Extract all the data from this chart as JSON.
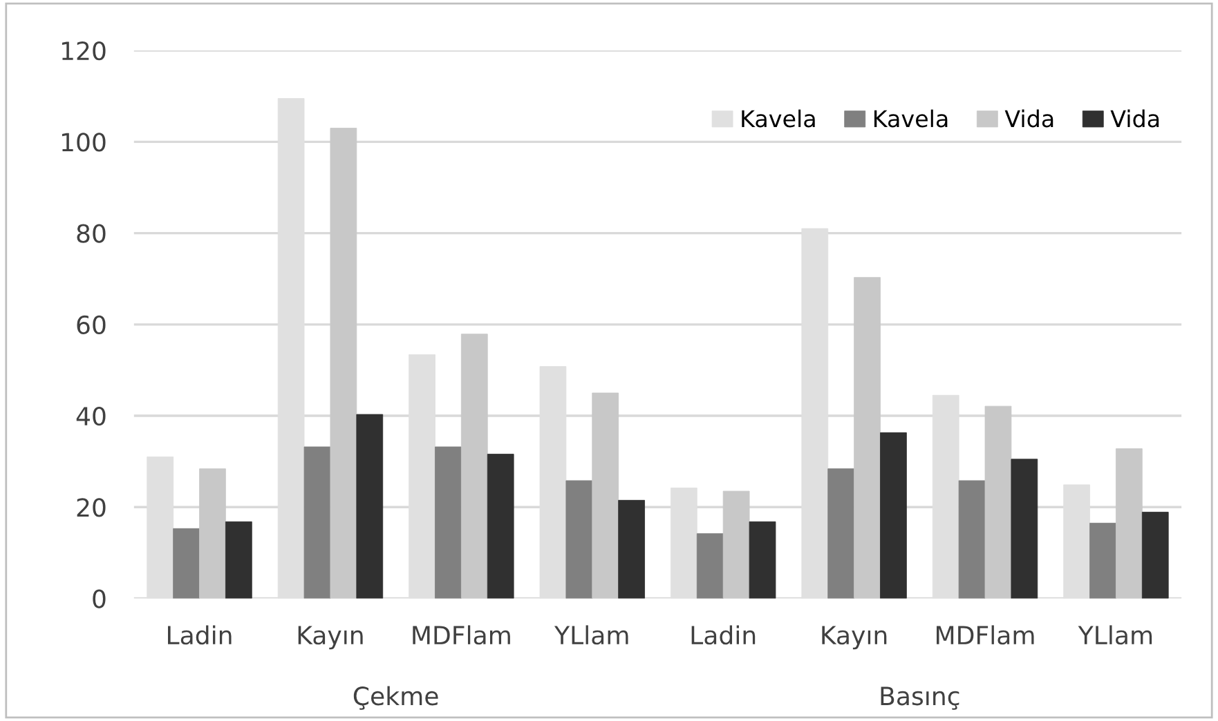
{
  "chart_data": {
    "type": "bar",
    "categories": [
      "Ladin",
      "Kayın",
      "MDFlam",
      "YLlam",
      "Ladin",
      "Kayın",
      "MDFlam",
      "YLlam"
    ],
    "series": [
      {
        "name": "Kavela",
        "color": "#e0e0e0",
        "values": [
          31.0,
          109.5,
          53.4,
          50.8,
          24.2,
          81.0,
          44.5,
          24.9
        ]
      },
      {
        "name": "Kavela",
        "color": "#808080",
        "values": [
          15.3,
          33.2,
          33.2,
          25.8,
          14.2,
          28.4,
          25.8,
          16.5
        ]
      },
      {
        "name": "Vida",
        "color": "#c8c8c8",
        "values": [
          28.4,
          103.0,
          57.9,
          45.0,
          23.5,
          70.3,
          42.1,
          32.8
        ]
      },
      {
        "name": "Vida",
        "color": "#303030",
        "values": [
          16.8,
          40.3,
          31.6,
          21.5,
          16.8,
          36.3,
          30.5,
          18.9
        ]
      }
    ],
    "annotations": [
      "Çekme",
      "Basınç"
    ],
    "ylim": [
      0,
      120
    ],
    "yticks": [
      0,
      20,
      40,
      60,
      80,
      100,
      120
    ],
    "grid": "y",
    "legend": "top right"
  }
}
